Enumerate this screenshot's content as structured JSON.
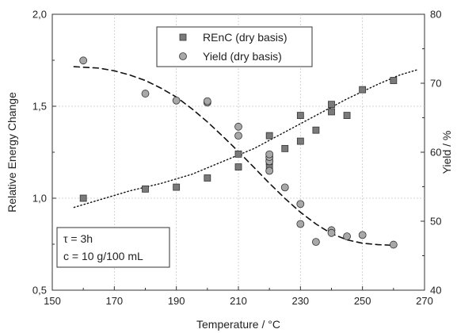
{
  "chart_data": {
    "type": "scatter",
    "xlabel": "Temperature / °C",
    "ylabel_left": "Relative Energy Change",
    "ylabel_right": "Yield / %",
    "xlim": [
      150,
      270
    ],
    "ylim_left": [
      0.5,
      2.0
    ],
    "ylim_right": [
      40,
      80
    ],
    "x_ticks": [
      "150",
      "170",
      "190",
      "210",
      "230",
      "250",
      "270"
    ],
    "y_left_ticks": [
      "0,5",
      "1,0",
      "1,5",
      "2,0"
    ],
    "y_right_ticks": [
      "40",
      "50",
      "60",
      "70",
      "80"
    ],
    "grid": true,
    "legend_position": "top-center",
    "annotation": [
      "τ = 3h",
      "c = 10 g/100 mL"
    ],
    "series": [
      {
        "name": "REnC (dry basis)",
        "axis": "left",
        "marker": "square",
        "color": "#7a7a7a",
        "x": [
          160,
          180,
          190,
          200,
          210,
          210,
          220,
          220,
          220,
          220,
          220,
          225,
          230,
          230,
          235,
          240,
          240,
          245,
          250,
          260
        ],
        "y": [
          1.0,
          1.05,
          1.06,
          1.11,
          1.17,
          1.24,
          1.34,
          1.17,
          1.2,
          1.23,
          1.21,
          1.27,
          1.31,
          1.45,
          1.37,
          1.47,
          1.51,
          1.45,
          1.59,
          1.64
        ]
      },
      {
        "name": "Yield (dry basis)",
        "axis": "right",
        "marker": "circle",
        "color": "#a8a8a8",
        "x": [
          160,
          180,
          190,
          200,
          200,
          210,
          210,
          220,
          220,
          220,
          220,
          225,
          230,
          230,
          235,
          240,
          240,
          245,
          250,
          260
        ],
        "y": [
          73.3,
          68.5,
          67.5,
          67.2,
          67.4,
          63.7,
          62.4,
          57.3,
          58.7,
          59.3,
          59.7,
          54.9,
          49.6,
          52.5,
          47.0,
          48.7,
          48.3,
          47.8,
          48.0,
          46.6
        ]
      }
    ],
    "fits": [
      {
        "for": "Yield (dry basis)",
        "style": "dashed",
        "axis": "right",
        "x": [
          157,
          165,
          170,
          175,
          180,
          185,
          190,
          195,
          200,
          205,
          210,
          215,
          220,
          225,
          230,
          235,
          240,
          245,
          250,
          255,
          260
        ],
        "y": [
          72.4,
          72.2,
          71.8,
          71.2,
          70.4,
          69.3,
          68.0,
          66.3,
          64.4,
          62.3,
          60.1,
          57.8,
          55.5,
          53.3,
          51.3,
          49.6,
          48.2,
          47.3,
          46.8,
          46.6,
          46.5
        ]
      },
      {
        "for": "REnC (dry basis)",
        "style": "dotted",
        "axis": "left",
        "x": [
          157,
          165,
          175,
          185,
          195,
          205,
          215,
          225,
          235,
          245,
          255,
          262,
          268
        ],
        "y": [
          0.95,
          0.99,
          1.04,
          1.08,
          1.13,
          1.2,
          1.27,
          1.36,
          1.45,
          1.54,
          1.62,
          1.67,
          1.7
        ]
      }
    ]
  }
}
